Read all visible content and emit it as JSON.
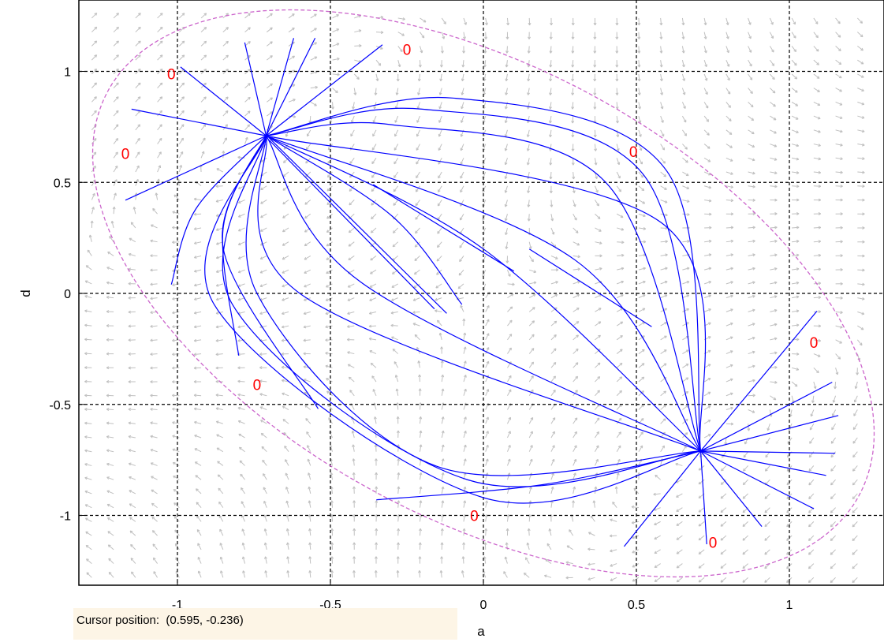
{
  "chart_data": {
    "type": "phase-portrait",
    "xlabel": "a",
    "ylabel": "d",
    "xlim": [
      -1.3,
      1.3
    ],
    "ylim": [
      -1.3,
      1.3
    ],
    "xticks": [
      -1,
      -0.5,
      0,
      0.5,
      1
    ],
    "xtick_labels": [
      "-1",
      "-0.5",
      "0",
      "0.5",
      "1"
    ],
    "yticks": [
      1,
      0.5,
      0,
      -0.5,
      -1
    ],
    "ytick_labels": [
      "1",
      "0.5",
      "0",
      "-0.5",
      "-1"
    ],
    "grid": true,
    "equilibria": [
      [
        -0.71,
        0.71
      ],
      [
        0.71,
        -0.71
      ]
    ],
    "zero_contour": {
      "shape": "ellipse",
      "center": [
        0,
        0
      ],
      "major_semi_axis": 1.56,
      "minor_semi_axis": 0.91,
      "angle_deg": -45,
      "color": "#cc66cc",
      "label": "0",
      "label_positions": [
        [
          -0.25,
          1.1
        ],
        [
          -1.02,
          0.99
        ],
        [
          -1.17,
          0.63
        ],
        [
          0.49,
          0.64
        ],
        [
          1.08,
          -0.22
        ],
        [
          -0.74,
          -0.41
        ],
        [
          -0.03,
          -1.0
        ],
        [
          0.75,
          -1.12
        ]
      ]
    },
    "trajectories": [
      {
        "points": [
          [
            -0.99,
            1.02
          ],
          [
            -0.71,
            0.71
          ]
        ]
      },
      {
        "points": [
          [
            -1.15,
            0.83
          ],
          [
            -0.71,
            0.71
          ]
        ]
      },
      {
        "points": [
          [
            -1.17,
            0.42
          ],
          [
            -0.71,
            0.71
          ]
        ]
      },
      {
        "points": [
          [
            -0.78,
            1.13
          ],
          [
            -0.71,
            0.71
          ]
        ]
      },
      {
        "points": [
          [
            -0.62,
            1.15
          ],
          [
            -0.71,
            0.71
          ]
        ]
      },
      {
        "points": [
          [
            -0.55,
            1.15
          ],
          [
            -0.71,
            0.71
          ]
        ]
      },
      {
        "points": [
          [
            -0.33,
            1.12
          ],
          [
            -0.71,
            0.71
          ]
        ]
      },
      {
        "points": [
          [
            0.73,
            -1.13
          ],
          [
            0.71,
            -0.71
          ]
        ]
      },
      {
        "points": [
          [
            0.46,
            -1.14
          ],
          [
            0.71,
            -0.71
          ]
        ]
      },
      {
        "points": [
          [
            0.91,
            -1.05
          ],
          [
            0.71,
            -0.71
          ]
        ]
      },
      {
        "points": [
          [
            1.08,
            -0.97
          ],
          [
            0.71,
            -0.71
          ]
        ]
      },
      {
        "points": [
          [
            1.12,
            -0.82
          ],
          [
            0.71,
            -0.71
          ]
        ]
      },
      {
        "points": [
          [
            1.15,
            -0.72
          ],
          [
            0.71,
            -0.71
          ]
        ]
      },
      {
        "points": [
          [
            1.16,
            -0.55
          ],
          [
            0.71,
            -0.71
          ]
        ]
      },
      {
        "points": [
          [
            1.14,
            -0.4
          ],
          [
            0.71,
            -0.71
          ]
        ]
      },
      {
        "points": [
          [
            1.09,
            -0.08
          ],
          [
            0.71,
            -0.71
          ]
        ]
      },
      {
        "points": [
          [
            -1.02,
            0.04
          ],
          [
            -0.94,
            0.38
          ],
          [
            -0.71,
            0.71
          ]
        ]
      },
      {
        "points": [
          [
            -0.35,
            -0.93
          ],
          [
            0.2,
            -0.86
          ],
          [
            0.71,
            -0.71
          ]
        ]
      },
      {
        "points": [
          [
            -0.8,
            -0.28
          ],
          [
            -0.85,
            0.3
          ],
          [
            -0.71,
            0.71
          ]
        ]
      },
      {
        "points": [
          [
            -0.54,
            -0.52
          ],
          [
            -0.85,
            0.2
          ],
          [
            -0.71,
            0.71
          ]
        ]
      },
      {
        "points": [
          [
            -0.71,
            0.71
          ],
          [
            -0.1,
            0.88
          ],
          [
            0.6,
            0.55
          ],
          [
            0.71,
            -0.71
          ]
        ]
      },
      {
        "points": [
          [
            -0.71,
            0.71
          ],
          [
            -0.2,
            0.83
          ],
          [
            0.52,
            0.54
          ],
          [
            0.71,
            -0.71
          ]
        ]
      },
      {
        "points": [
          [
            -0.71,
            0.71
          ],
          [
            -0.3,
            0.76
          ],
          [
            0.4,
            0.5
          ],
          [
            0.71,
            -0.71
          ]
        ]
      },
      {
        "points": [
          [
            -0.71,
            0.71
          ],
          [
            -0.88,
            -0.05
          ],
          [
            0.0,
            -0.92
          ],
          [
            0.71,
            -0.71
          ]
        ]
      },
      {
        "points": [
          [
            -0.71,
            0.71
          ],
          [
            -0.82,
            -0.05
          ],
          [
            -0.05,
            -0.84
          ],
          [
            0.71,
            -0.71
          ]
        ]
      },
      {
        "points": [
          [
            -0.71,
            0.71
          ],
          [
            -0.74,
            0.0
          ],
          [
            -0.15,
            -0.78
          ],
          [
            0.71,
            -0.71
          ]
        ]
      },
      {
        "points": [
          [
            -0.71,
            0.71
          ],
          [
            -0.6,
            0.0
          ],
          [
            0.71,
            -0.71
          ]
        ]
      },
      {
        "points": [
          [
            -0.71,
            0.71
          ],
          [
            -0.4,
            0.05
          ],
          [
            0.71,
            -0.71
          ]
        ]
      },
      {
        "points": [
          [
            -0.71,
            0.71
          ],
          [
            0.0,
            0.2
          ],
          [
            0.71,
            -0.71
          ]
        ]
      },
      {
        "points": [
          [
            -0.71,
            0.71
          ],
          [
            0.3,
            0.15
          ],
          [
            0.71,
            -0.71
          ]
        ]
      },
      {
        "points": [
          [
            -0.71,
            0.71
          ],
          [
            0.58,
            0.32
          ],
          [
            0.71,
            -0.71
          ]
        ]
      },
      {
        "points": [
          [
            -0.71,
            0.71
          ],
          [
            -0.3,
            0.35
          ],
          [
            -0.07,
            -0.05
          ]
        ]
      },
      {
        "points": [
          [
            -0.7,
            0.7
          ],
          [
            -0.12,
            -0.09
          ]
        ]
      },
      {
        "points": [
          [
            -0.7,
            0.69
          ],
          [
            -0.16,
            -0.07
          ]
        ]
      },
      {
        "points": [
          [
            -0.36,
            0.49
          ],
          [
            0.1,
            0.1
          ]
        ]
      },
      {
        "points": [
          [
            0.15,
            0.2
          ],
          [
            0.55,
            -0.15
          ]
        ]
      }
    ],
    "vector_field": {
      "color": "#c0c0c0",
      "description": "arrows tangent to rotation about origin, direction toward the stable node"
    },
    "line_colors": {
      "trajectory": "#0000ff",
      "grid": "#000000",
      "zero_label": "#ff0000"
    }
  },
  "status": {
    "cursor_label": "Cursor position:",
    "cursor_value": "(0.595, -0.236)"
  }
}
